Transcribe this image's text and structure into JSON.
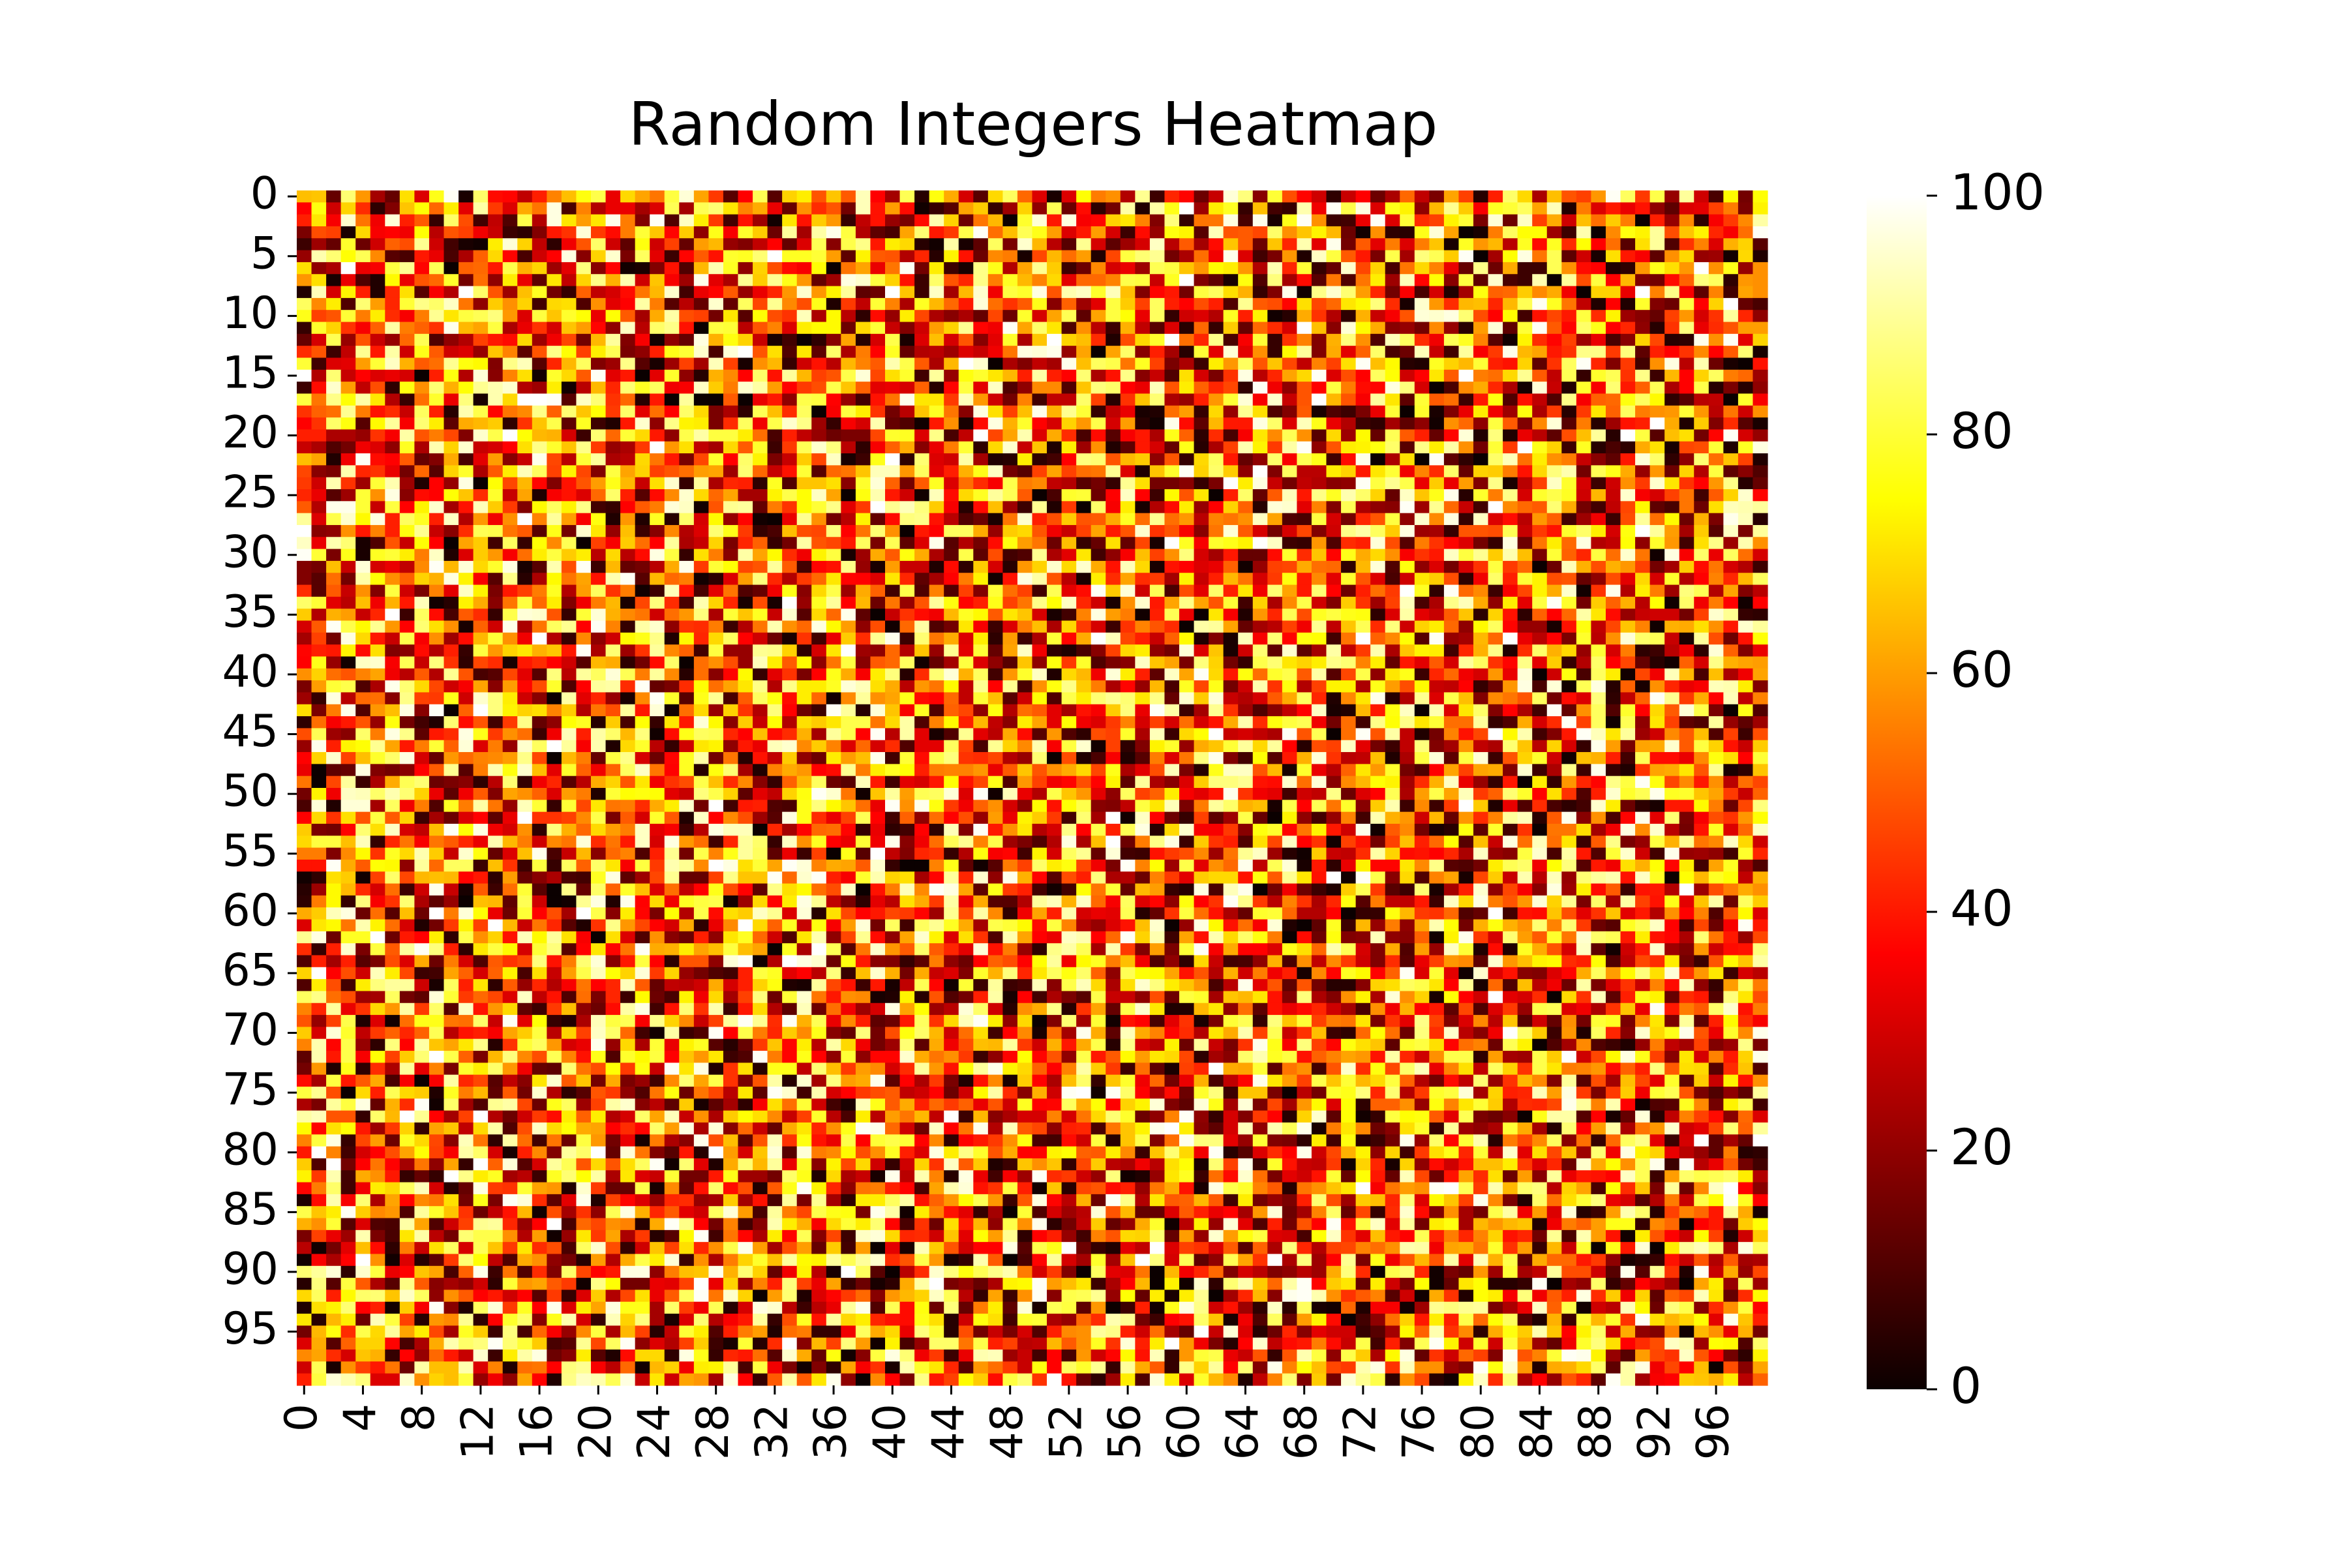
{
  "chart_data": {
    "type": "heatmap",
    "title": "Random Integers Heatmap",
    "xlabel": "",
    "ylabel": "",
    "rows": 100,
    "cols": 100,
    "value_range": [
      0,
      100
    ],
    "value_type": "random integers 0-100 (individual cells not recoverable from image)",
    "x_tick_labels": [
      "0",
      "4",
      "8",
      "12",
      "16",
      "20",
      "24",
      "28",
      "32",
      "36",
      "40",
      "44",
      "48",
      "52",
      "56",
      "60",
      "64",
      "68",
      "72",
      "76",
      "80",
      "84",
      "88",
      "92",
      "96"
    ],
    "y_tick_labels": [
      "0",
      "5",
      "10",
      "15",
      "20",
      "25",
      "30",
      "35",
      "40",
      "45",
      "50",
      "55",
      "60",
      "65",
      "70",
      "75",
      "80",
      "85",
      "90",
      "95"
    ],
    "colorbar": {
      "colormap": "hot",
      "min": 0,
      "max": 100,
      "tick_labels": [
        "0",
        "20",
        "40",
        "60",
        "80",
        "100"
      ],
      "placement": "right"
    },
    "grid": false,
    "colors": {
      "low": "#0b0000",
      "mid_red": "#ff0000",
      "mid_yellow": "#ffff00",
      "high": "#ffffff"
    }
  }
}
